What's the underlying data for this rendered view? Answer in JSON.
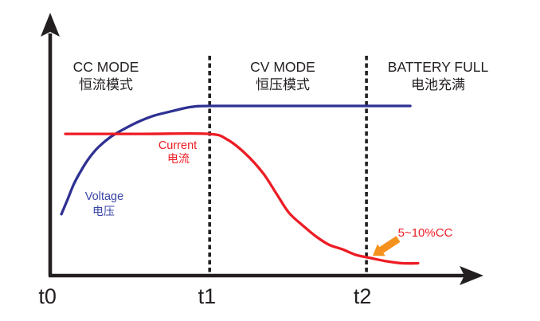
{
  "chart_data": {
    "type": "line",
    "title": "",
    "xlabel": "",
    "ylabel": "",
    "grid": false,
    "legend_position": "inline-labels",
    "ylim": [
      0,
      1
    ],
    "x_ticks": [
      {
        "label": "t0",
        "x": 0.0,
        "label_x": -0.006
      },
      {
        "label": "t1",
        "x": 0.368,
        "label_x": 0.362
      },
      {
        "label": "t2",
        "x": 0.73,
        "label_x": 0.721
      }
    ],
    "phases": [
      {
        "title": "CC MODE",
        "subtitle": "恒流模式"
      },
      {
        "title": "CV MODE",
        "subtitle": "恒压模式"
      },
      {
        "title": "BATTERY FULL",
        "subtitle": "电池充满"
      }
    ],
    "series": [
      {
        "key": "voltage",
        "label": "Voltage",
        "label_zh": "电压",
        "color": "#2e3192",
        "label_color": "#3a46a5",
        "points": [
          [
            0.026,
            0.244
          ],
          [
            0.04,
            0.302
          ],
          [
            0.055,
            0.365
          ],
          [
            0.072,
            0.419
          ],
          [
            0.09,
            0.467
          ],
          [
            0.11,
            0.508
          ],
          [
            0.138,
            0.549
          ],
          [
            0.169,
            0.581
          ],
          [
            0.202,
            0.61
          ],
          [
            0.239,
            0.635
          ],
          [
            0.283,
            0.654
          ],
          [
            0.325,
            0.67
          ],
          [
            0.368,
            0.674
          ],
          [
            0.5,
            0.674
          ],
          [
            0.67,
            0.674
          ],
          [
            0.831,
            0.674
          ]
        ]
      },
      {
        "key": "current",
        "label": "Current",
        "label_zh": "电流",
        "color": "#ed1c24",
        "label_color": "#ed1c24",
        "points": [
          [
            0.035,
            0.563
          ],
          [
            0.215,
            0.563
          ],
          [
            0.366,
            0.563
          ],
          [
            0.408,
            0.541
          ],
          [
            0.449,
            0.487
          ],
          [
            0.491,
            0.408
          ],
          [
            0.522,
            0.326
          ],
          [
            0.551,
            0.25
          ],
          [
            0.583,
            0.199
          ],
          [
            0.614,
            0.155
          ],
          [
            0.643,
            0.123
          ],
          [
            0.675,
            0.104
          ],
          [
            0.706,
            0.082
          ],
          [
            0.739,
            0.07
          ],
          [
            0.776,
            0.057
          ],
          [
            0.813,
            0.049
          ],
          [
            0.849,
            0.049
          ]
        ]
      }
    ],
    "annotation": {
      "text": "5~10%CC",
      "color": "#ed1c24",
      "arrow_color": "#f5921e"
    },
    "colors": {
      "axis": "#231f20",
      "text": "#231f20",
      "background": "#ffffff"
    }
  }
}
